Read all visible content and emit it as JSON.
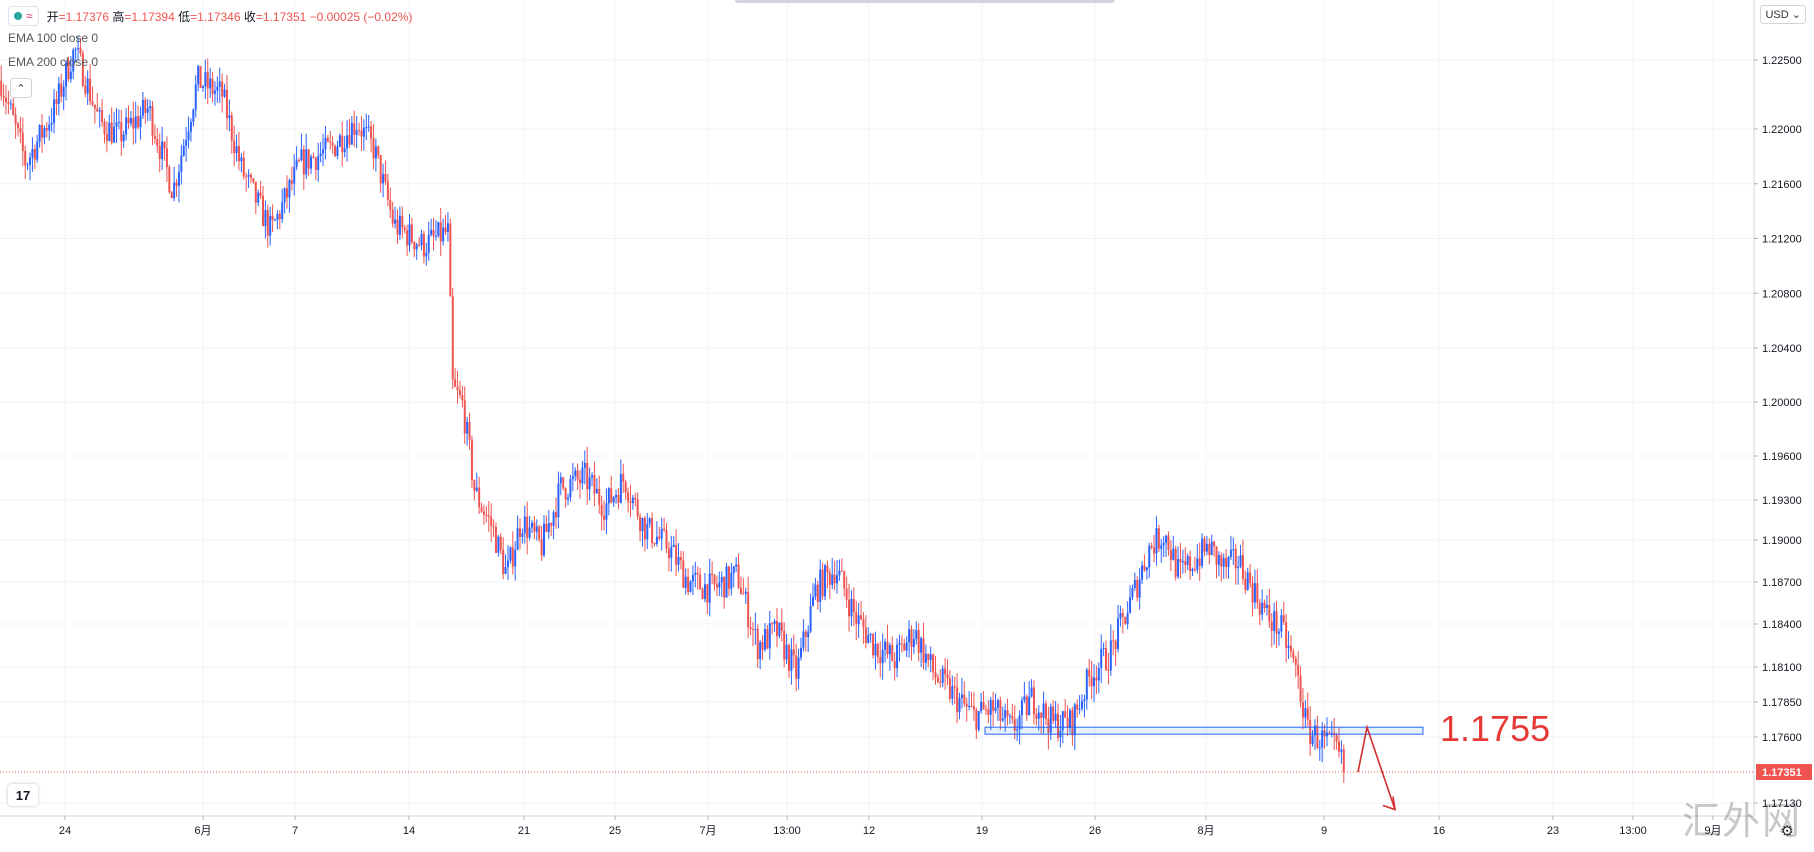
{
  "legend": {
    "open_label": "开",
    "open": "1.17376",
    "high_label": "高",
    "high": "1.17394",
    "low_label": "低",
    "low": "1.17346",
    "close_label": "收",
    "close": "1.17351",
    "change": "−0.00025 (−0.02%)",
    "ema100": "EMA 100 close 0",
    "ema200": "EMA 200 close 0"
  },
  "currency_button": "USD",
  "watermark": "汇外网",
  "chart_data": {
    "type": "candlestick",
    "price_axis": {
      "ticks": [
        1.225,
        1.22,
        1.216,
        1.212,
        1.208,
        1.204,
        1.2,
        1.196,
        1.193,
        1.19,
        1.187,
        1.184,
        1.181,
        1.1785,
        1.176,
        1.1713
      ],
      "tick_labels": [
        "1.22500",
        "1.22000",
        "1.21600",
        "1.21200",
        "1.20800",
        "1.20400",
        "1.20000",
        "1.19600",
        "1.19300",
        "1.19000",
        "1.18700",
        "1.18400",
        "1.18100",
        "1.17850",
        "1.17600",
        "1.17130"
      ]
    },
    "time_axis": {
      "labels": [
        "24",
        "6月",
        "7",
        "14",
        "21",
        "25",
        "7月",
        "13:00",
        "12",
        "19",
        "26",
        "8月",
        "9",
        "16",
        "23",
        "13:00",
        "9月"
      ]
    },
    "current_price": {
      "value": 1.17351,
      "label": "1.17351",
      "color": "#ef5350"
    },
    "support_zone": {
      "low": 1.1762,
      "high": 1.1767
    },
    "annotation": {
      "text": "1.1755",
      "color": "#e53935"
    },
    "projection_arrow": [
      [
        1.1735,
        1.1735
      ],
      [
        1.1767,
        1.1767
      ],
      [
        1.1708,
        1.1708
      ]
    ],
    "trend": [
      [
        0,
        1.2235
      ],
      [
        10,
        1.2175
      ],
      [
        22,
        1.2215
      ],
      [
        30,
        1.226
      ],
      [
        40,
        1.2205
      ],
      [
        48,
        1.2195
      ],
      [
        60,
        1.2215
      ],
      [
        70,
        1.2155
      ],
      [
        80,
        1.2235
      ],
      [
        90,
        1.2225
      ],
      [
        98,
        1.217
      ],
      [
        110,
        1.2125
      ],
      [
        122,
        1.2175
      ],
      [
        134,
        1.2185
      ],
      [
        145,
        1.2205
      ],
      [
        152,
        1.2185
      ],
      [
        160,
        1.213
      ],
      [
        172,
        1.2115
      ],
      [
        182,
        1.2125
      ],
      [
        184,
        1.201
      ],
      [
        188,
        1.1998
      ],
      [
        193,
        1.1935
      ],
      [
        200,
        1.191
      ],
      [
        206,
        1.1875
      ],
      [
        212,
        1.1915
      ],
      [
        220,
        1.1895
      ],
      [
        228,
        1.1938
      ],
      [
        238,
        1.1945
      ],
      [
        246,
        1.1925
      ],
      [
        254,
        1.1945
      ],
      [
        262,
        1.191
      ],
      [
        272,
        1.1895
      ],
      [
        280,
        1.187
      ],
      [
        290,
        1.1865
      ],
      [
        300,
        1.1875
      ],
      [
        308,
        1.1825
      ],
      [
        316,
        1.1835
      ],
      [
        324,
        1.1805
      ],
      [
        332,
        1.1865
      ],
      [
        340,
        1.188
      ],
      [
        348,
        1.1845
      ],
      [
        356,
        1.1825
      ],
      [
        364,
        1.1815
      ],
      [
        372,
        1.1835
      ],
      [
        380,
        1.1805
      ],
      [
        388,
        1.179
      ],
      [
        396,
        1.1775
      ],
      [
        404,
        1.178
      ],
      [
        412,
        1.1765
      ],
      [
        420,
        1.1788
      ],
      [
        428,
        1.177
      ],
      [
        436,
        1.177
      ],
      [
        444,
        1.1805
      ],
      [
        452,
        1.182
      ],
      [
        460,
        1.1855
      ],
      [
        468,
        1.1895
      ],
      [
        474,
        1.1905
      ],
      [
        480,
        1.1875
      ],
      [
        486,
        1.1885
      ],
      [
        492,
        1.1895
      ],
      [
        498,
        1.188
      ],
      [
        504,
        1.1885
      ],
      [
        510,
        1.1865
      ],
      [
        516,
        1.1845
      ],
      [
        522,
        1.1835
      ],
      [
        528,
        1.1805
      ],
      [
        532,
        1.1765
      ],
      [
        538,
        1.1758
      ],
      [
        544,
        1.175
      ],
      [
        548,
        1.1735
      ]
    ]
  }
}
